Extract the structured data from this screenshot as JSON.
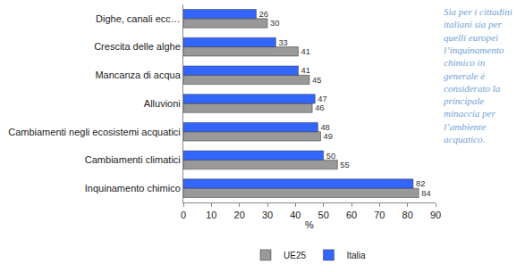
{
  "chart_data": {
    "type": "bar",
    "orientation": "horizontal",
    "categories": [
      "Inquinamento chimico",
      "Cambiamenti climatici",
      "Cambiamenti negli ecosistemi acquatici",
      "Alluvioni",
      "Mancanza di acqua",
      "Crescita delle alghe",
      "Dighe, canali ecc…"
    ],
    "series": [
      {
        "name": "UE25",
        "color": "#999999",
        "values": [
          84,
          55,
          49,
          46,
          45,
          41,
          30
        ]
      },
      {
        "name": "Italia",
        "color": "#3366ff",
        "values": [
          82,
          50,
          48,
          47,
          41,
          33,
          26
        ]
      }
    ],
    "x_label": "%",
    "xlim": [
      0,
      90
    ],
    "xticks": [
      0,
      10,
      20,
      30,
      40,
      50,
      60,
      70,
      80,
      90
    ],
    "grid": false,
    "data_labels": true,
    "legend": "bottom",
    "annotations": [
      {
        "text": [
          "Sia per i cittadini",
          "italiani sia per",
          "quelli europei",
          "l’inquinamento",
          "chimico in",
          "generale è",
          "considerato la",
          "principale",
          "minaccia per",
          "l’ambiente",
          "acquatico."
        ]
      }
    ]
  }
}
